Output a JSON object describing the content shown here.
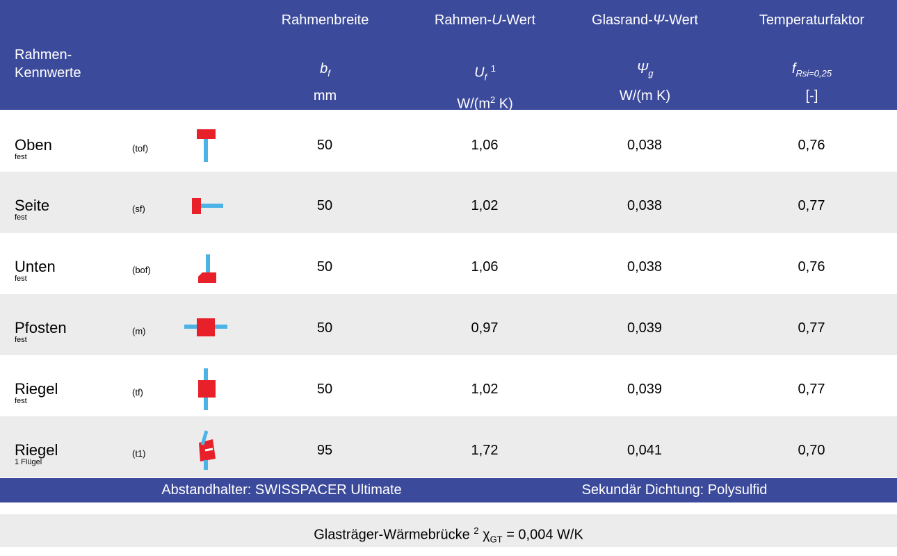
{
  "header": {
    "label": [
      "Rahmen-",
      "Kennwerte"
    ],
    "columns": [
      {
        "title": [
          "Rahmenbreite"
        ],
        "symbol": "b",
        "sub": "f",
        "unit": [
          "mm"
        ]
      },
      {
        "title": [
          "Rahmen-",
          "U",
          "-Wert"
        ],
        "symbol": "U",
        "sub": "f",
        "ref": "1",
        "unit": [
          "W/(m",
          "2",
          " K)"
        ]
      },
      {
        "title": [
          "Glasrand-",
          "Ψ",
          "-Wert"
        ],
        "symbol": "Ψ",
        "sub": "g",
        "unit": [
          "W/(m K)"
        ]
      },
      {
        "title": [
          "Temperaturfaktor"
        ],
        "symbol": "f",
        "sub": "Rsi=0,25",
        "unit": [
          "[-]"
        ]
      }
    ]
  },
  "rows": [
    {
      "name": "Oben",
      "sub": "fest",
      "code": "(tof)",
      "values": [
        "50",
        "1,06",
        "0,038",
        "0,76"
      ]
    },
    {
      "name": "Seite",
      "sub": "fest",
      "code": "(sf)",
      "values": [
        "50",
        "1,02",
        "0,038",
        "0,77"
      ]
    },
    {
      "name": "Unten",
      "sub": "fest",
      "code": "(bof)",
      "values": [
        "50",
        "1,06",
        "0,038",
        "0,76"
      ]
    },
    {
      "name": "Pfosten",
      "sub": "fest",
      "code": "(m)",
      "values": [
        "50",
        "0,97",
        "0,039",
        "0,77"
      ]
    },
    {
      "name": "Riegel",
      "sub": "fest",
      "code": "(tf)",
      "values": [
        "50",
        "1,02",
        "0,039",
        "0,77"
      ]
    },
    {
      "name": "Riegel",
      "sub": "1 Flügel",
      "code": "(t1)",
      "values": [
        "95",
        "1,72",
        "0,041",
        "0,70"
      ]
    }
  ],
  "footer": [
    "Abstandhalter: SWISSPACER Ultimate",
    "Sekundär Dichtung: Polysulfid"
  ],
  "note": {
    "text": "Glasträger-Wärmebrücke",
    "ref": "2",
    "symbol": "χ",
    "sub": "GT",
    "value": "= 0,004 W/K"
  }
}
